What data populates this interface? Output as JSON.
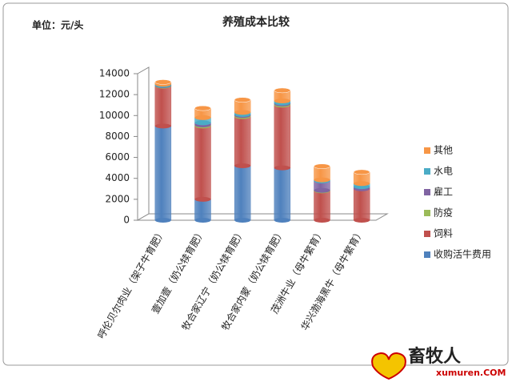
{
  "chart_data": {
    "type": "bar",
    "stacked": true,
    "title": "养殖成本比较",
    "unit_label": "单位：元/头",
    "categories": [
      "呼伦贝尔肉业（架子牛育肥）",
      "壹加壹（奶公犊育肥）",
      "牧合家辽宁（奶公犊育肥）",
      "牧合家内蒙（奶公犊育肥）",
      "茂洲牛业（母牛繁育）",
      "华兴渤海黑牛（母牛繁育）"
    ],
    "series": [
      {
        "name": "收购活牛费用",
        "color": "#4f81bd",
        "values": [
          9000,
          2000,
          5200,
          5000,
          0,
          0
        ]
      },
      {
        "name": "饲料",
        "color": "#c0504d",
        "values": [
          3800,
          7000,
          4700,
          6000,
          2800,
          3000
        ]
      },
      {
        "name": "防疫",
        "color": "#9bbb59",
        "values": [
          50,
          100,
          100,
          100,
          50,
          0
        ]
      },
      {
        "name": "雇工",
        "color": "#8064a2",
        "values": [
          50,
          200,
          100,
          100,
          900,
          200
        ]
      },
      {
        "name": "水电",
        "color": "#4bacc6",
        "values": [
          100,
          500,
          200,
          200,
          100,
          300
        ]
      },
      {
        "name": "其他",
        "color": "#f79646",
        "values": [
          200,
          900,
          1200,
          1000,
          1300,
          1100
        ]
      }
    ],
    "ylim": [
      0,
      14000
    ],
    "yticks": [
      0,
      2000,
      4000,
      6000,
      8000,
      10000,
      12000,
      14000
    ],
    "legend": "right",
    "watermark": {
      "name": "畜牧人",
      "site": "xumuren.COM"
    }
  }
}
